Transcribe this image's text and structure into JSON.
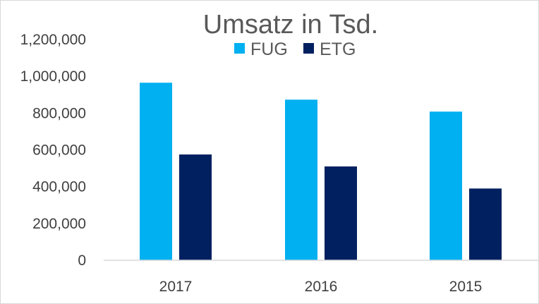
{
  "chart_data": {
    "type": "bar",
    "title": "Umsatz in Tsd.",
    "categories": [
      "2017",
      "2016",
      "2015"
    ],
    "series": [
      {
        "name": "FUG",
        "color": "#00B0F0",
        "values": [
          965000,
          873000,
          808000
        ]
      },
      {
        "name": "ETG",
        "color": "#002060",
        "values": [
          575000,
          510000,
          390000
        ]
      }
    ],
    "ylim": [
      0,
      1200000
    ],
    "y_ticks": [
      "0",
      "200,000",
      "400,000",
      "600,000",
      "800,000",
      "1,000,000",
      "1,200,000"
    ],
    "grid": false,
    "legend_position": "top",
    "xlabel": "",
    "ylabel": ""
  }
}
